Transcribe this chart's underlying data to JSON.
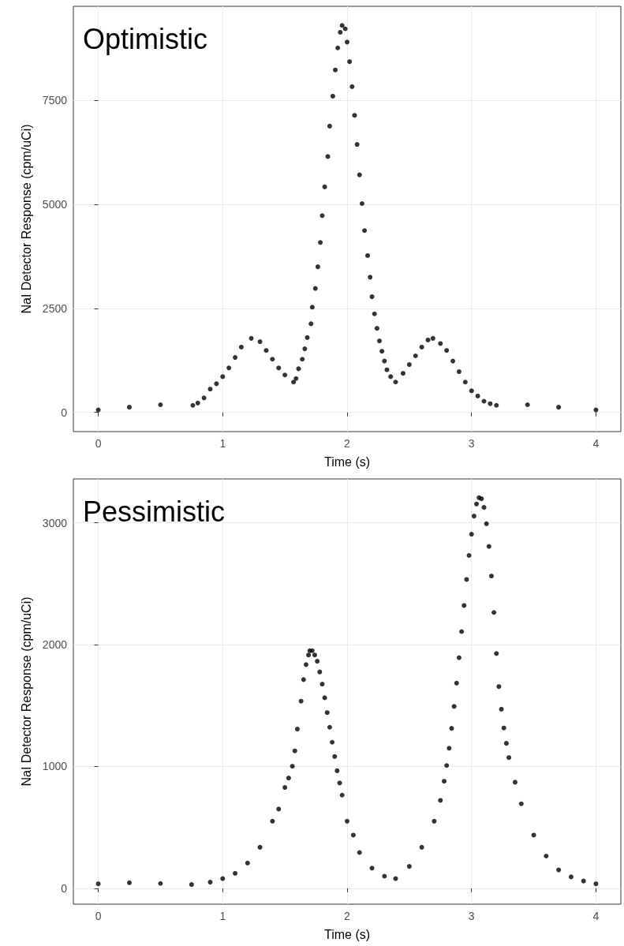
{
  "chart_data": [
    {
      "type": "scatter",
      "title": "Optimistic",
      "xlabel": "Time (s)",
      "ylabel": "NaI Detector Response (cpm/uCi)",
      "xlim": [
        -0.2,
        4.2
      ],
      "xticks": [
        0,
        1,
        2,
        3,
        4
      ],
      "ylim": [
        -460,
        9760
      ],
      "yticks": [
        0,
        2500,
        5000,
        7500
      ],
      "grid": true,
      "marker": "circle",
      "series": [
        {
          "color": "#000000",
          "x": [
            0,
            0.25,
            0.5,
            0.76,
            0.8,
            0.85,
            0.9,
            0.95,
            1.0,
            1.05,
            1.1,
            1.15,
            1.23,
            1.3,
            1.35,
            1.4,
            1.45,
            1.5,
            1.57,
            1.59,
            1.61,
            1.64,
            1.66,
            1.68,
            1.71,
            1.72,
            1.745,
            1.765,
            1.785,
            1.8,
            1.82,
            1.845,
            1.86,
            1.885,
            1.905,
            1.925,
            1.945,
            1.96,
            1.985,
            2.0,
            2.02,
            2.04,
            2.06,
            2.08,
            2.1,
            2.12,
            2.14,
            2.165,
            2.185,
            2.2,
            2.22,
            2.24,
            2.26,
            2.28,
            2.3,
            2.32,
            2.35,
            2.39,
            2.45,
            2.5,
            2.55,
            2.6,
            2.65,
            2.69,
            2.75,
            2.8,
            2.85,
            2.9,
            2.95,
            3.0,
            3.05,
            3.1,
            3.15,
            3.2,
            3.45,
            3.7,
            4.0
          ],
          "values": [
            60,
            125,
            185,
            170,
            225,
            350,
            560,
            690,
            860,
            1070,
            1320,
            1570,
            1780,
            1700,
            1490,
            1280,
            1070,
            900,
            730,
            815,
            1050,
            1280,
            1530,
            1800,
            2130,
            2530,
            2980,
            3500,
            4085,
            4730,
            5420,
            6150,
            6880,
            7600,
            8230,
            8760,
            9135,
            9300,
            9220,
            8900,
            8430,
            7830,
            7140,
            6440,
            5710,
            5020,
            4370,
            3770,
            3250,
            2780,
            2370,
            2020,
            1720,
            1470,
            1235,
            1025,
            860,
            730,
            940,
            1150,
            1360,
            1570,
            1740,
            1780,
            1655,
            1490,
            1235,
            980,
            730,
            520,
            395,
            270,
            210,
            170,
            185,
            125,
            60
          ]
        }
      ]
    },
    {
      "type": "scatter",
      "title": "Pessimistic",
      "xlabel": "Time (s)",
      "ylabel": "NaI Detector Response (cpm/uCi)",
      "xlim": [
        -0.2,
        4.2
      ],
      "xticks": [
        0,
        1,
        2,
        3,
        4
      ],
      "ylim": [
        -130,
        3360
      ],
      "yticks": [
        0,
        1000,
        2000,
        3000
      ],
      "grid": true,
      "marker": "circle",
      "series": [
        {
          "color": "#000000",
          "x": [
            0,
            0.25,
            0.5,
            0.75,
            0.9,
            1.0,
            1.1,
            1.2,
            1.3,
            1.4,
            1.45,
            1.5,
            1.53,
            1.56,
            1.58,
            1.6,
            1.63,
            1.65,
            1.67,
            1.69,
            1.7,
            1.72,
            1.74,
            1.76,
            1.78,
            1.8,
            1.82,
            1.84,
            1.86,
            1.88,
            1.9,
            1.92,
            1.94,
            1.96,
            2.0,
            2.05,
            2.1,
            2.2,
            2.3,
            2.39,
            2.5,
            2.6,
            2.7,
            2.75,
            2.78,
            2.8,
            2.82,
            2.84,
            2.86,
            2.88,
            2.9,
            2.92,
            2.94,
            2.96,
            2.98,
            3.0,
            3.02,
            3.04,
            3.06,
            3.08,
            3.1,
            3.12,
            3.14,
            3.16,
            3.18,
            3.2,
            3.22,
            3.24,
            3.26,
            3.28,
            3.3,
            3.35,
            3.4,
            3.5,
            3.6,
            3.7,
            3.8,
            3.9,
            4.0
          ],
          "values": [
            37,
            46,
            40,
            31,
            51,
            80,
            123,
            208,
            337,
            551,
            651,
            828,
            905,
            1002,
            1128,
            1307,
            1536,
            1713,
            1836,
            1915,
            1950,
            1950,
            1915,
            1864,
            1776,
            1676,
            1564,
            1442,
            1322,
            1199,
            1082,
            965,
            865,
            765,
            551,
            437,
            294,
            166,
            100,
            80,
            180,
            337,
            551,
            722,
            879,
            1008,
            1150,
            1313,
            1493,
            1684,
            1893,
            2107,
            2321,
            2535,
            2732,
            2906,
            3055,
            3154,
            3206,
            3197,
            3126,
            2992,
            2806,
            2563,
            2264,
            1927,
            1656,
            1470,
            1316,
            1190,
            1073,
            871,
            694,
            437,
            265,
            151,
            94,
            60,
            37
          ]
        }
      ]
    }
  ]
}
